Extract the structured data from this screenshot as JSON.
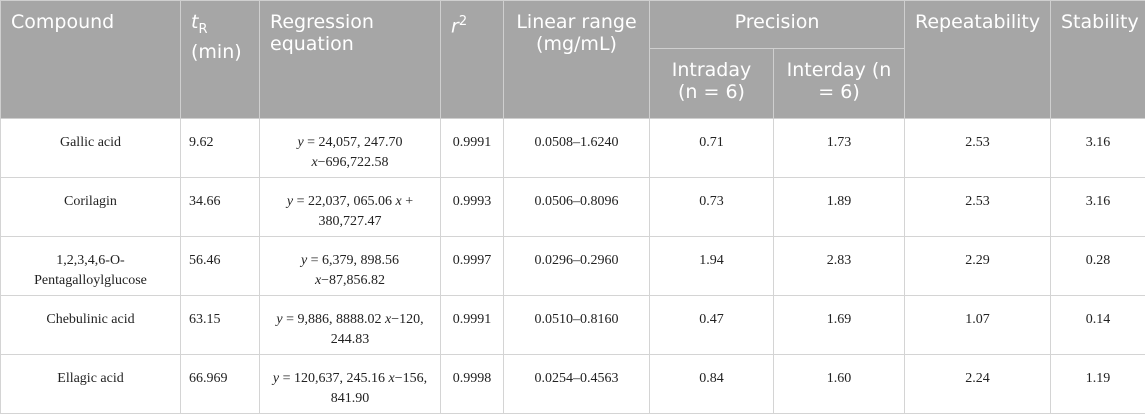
{
  "table": {
    "header": {
      "compound": "Compound",
      "tr": [
        "t",
        "R",
        "(min)"
      ],
      "regression": "Regression equation",
      "r2": [
        "r",
        "2"
      ],
      "linear_range": "Linear range (mg/mL)",
      "precision": "Precision",
      "intraday": "Intraday (n = 6)",
      "interday": "Interday (n = 6)",
      "repeatability": "Repeatability",
      "stability": "Stability"
    },
    "rows": [
      [
        "Gallic acid",
        "9.62",
        [
          "y",
          " = 24,057, 247.70 ",
          "x",
          "−696,722.58"
        ],
        "0.9991",
        "0.0508–1.6240",
        "0.71",
        "1.73",
        "2.53",
        "3.16"
      ],
      [
        "Corilagin",
        "34.66",
        [
          "y",
          " = 22,037, 065.06 ",
          "x",
          " + 380,727.47"
        ],
        "0.9993",
        "0.0506–0.8096",
        "0.73",
        "1.89",
        "2.53",
        "3.16"
      ],
      [
        "1,2,3,4,6-O-Pentagalloylglucose",
        "56.46",
        [
          "y",
          " = 6,379, 898.56 ",
          "x",
          "−87,856.82"
        ],
        "0.9997",
        "0.0296–0.2960",
        "1.94",
        "2.83",
        "2.29",
        "0.28"
      ],
      [
        "Chebulinic acid",
        "63.15",
        [
          "y",
          " = 9,886, 8888.02 ",
          "x",
          "−120, 244.83"
        ],
        "0.9991",
        "0.0510–0.8160",
        "0.47",
        "1.69",
        "1.07",
        "0.14"
      ],
      [
        "Ellagic acid",
        "66.969",
        [
          "y",
          " = 120,637, 245.16 ",
          "x",
          "−156, 841.90"
        ],
        "0.9998",
        "0.0254–0.4563",
        "0.84",
        "1.60",
        "2.24",
        "1.19"
      ]
    ]
  }
}
